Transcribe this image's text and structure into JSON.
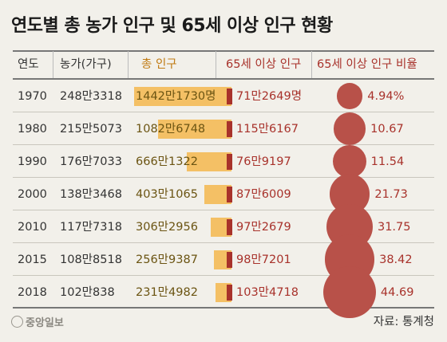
{
  "header": {
    "title": "연도별 총 농가 인구 및 65세 이상 인구 현황"
  },
  "columns": {
    "year": "연도",
    "farms": "농가(가구)",
    "total": "총 인구",
    "old": "65세 이상 인구",
    "ratio": "65세 이상 인구 비율"
  },
  "rows": [
    {
      "year": "1970",
      "farms": "248만3318",
      "total": "1442만1730명",
      "old": "71만2649명",
      "ratio": "4.94%"
    },
    {
      "year": "1980",
      "farms": "215만5073",
      "total": "1082만6748",
      "old": "115만6167",
      "ratio": "10.67"
    },
    {
      "year": "1990",
      "farms": "176만7033",
      "total": "666만1322",
      "old": "76만9197",
      "ratio": "11.54"
    },
    {
      "year": "2000",
      "farms": "138만3468",
      "total": "403만1065",
      "old": "87만6009",
      "ratio": "21.73"
    },
    {
      "year": "2010",
      "farms": "117만7318",
      "total": "306만2956",
      "old": "97만2679",
      "ratio": "31.75"
    },
    {
      "year": "2015",
      "farms": "108만8518",
      "total": "256만9387",
      "old": "98만7201",
      "ratio": "38.42"
    },
    {
      "year": "2018",
      "farms": "102만838",
      "total": "231만4982",
      "old": "103만4718",
      "ratio": "44.69"
    }
  ],
  "chart_data": {
    "type": "table",
    "categories": [
      "1970",
      "1980",
      "1990",
      "2000",
      "2010",
      "2015",
      "2018"
    ],
    "series": [
      {
        "name": "농가(가구)",
        "values": [
          2483318,
          2155073,
          1767033,
          1383468,
          1177318,
          1088518,
          1020838
        ]
      },
      {
        "name": "총 인구",
        "values": [
          14421730,
          10826748,
          6661322,
          4031065,
          3062956,
          2569387,
          2314982
        ]
      },
      {
        "name": "65세 이상 인구",
        "values": [
          712649,
          1156167,
          769197,
          876009,
          972679,
          987201,
          1034718
        ]
      },
      {
        "name": "65세 이상 인구 비율",
        "values": [
          4.94,
          10.67,
          11.54,
          21.73,
          31.75,
          38.42,
          44.69
        ]
      }
    ]
  },
  "footer": {
    "brand": "중앙일보",
    "source": "자료: 통계청"
  },
  "colors": {
    "total_bar": "#f4c065",
    "old_bar": "#a8322b",
    "bubble": "#b85149"
  }
}
